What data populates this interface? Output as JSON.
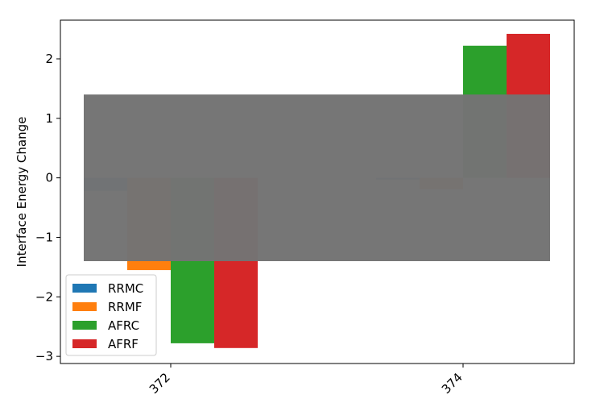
{
  "chart_data": {
    "type": "bar",
    "title": "",
    "xlabel": "",
    "ylabel": "Interface Energy Change",
    "categories": [
      "372",
      "374"
    ],
    "series": [
      {
        "name": "RRMC",
        "color": "#1f77b4",
        "values": [
          -0.22,
          -0.03
        ]
      },
      {
        "name": "RRMF",
        "color": "#ff7f0e",
        "values": [
          -1.55,
          -0.19
        ]
      },
      {
        "name": "AFRC",
        "color": "#2ca02c",
        "values": [
          -2.78,
          2.22
        ]
      },
      {
        "name": "AFRF",
        "color": "#d62728",
        "values": [
          -2.86,
          2.42
        ]
      }
    ],
    "ylim": [
      -3.12,
      2.65
    ],
    "yticks": [
      -3,
      -2,
      -1,
      0,
      1,
      2
    ],
    "ytick_labels": [
      "−3",
      "−2",
      "−1",
      "0",
      "1",
      "2"
    ],
    "xtick_rotation": 45,
    "grid": false,
    "legend_position": "lower-left",
    "overlay_band": {
      "y_range": [
        -1.4,
        1.4
      ],
      "color": "#737373"
    }
  }
}
